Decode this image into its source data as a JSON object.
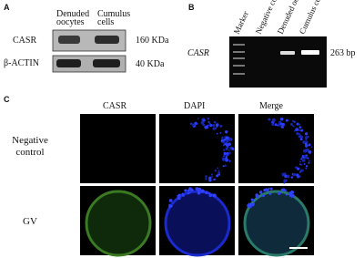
{
  "panels": [
    {
      "label": "A",
      "columns": [
        "Denuded oocytes",
        "Cumulus cells"
      ],
      "rows": [
        {
          "name": "CASR",
          "size": "160 KDa"
        },
        {
          "name": "β-ACTIN",
          "size": "40 KDa"
        }
      ]
    },
    {
      "label": "B",
      "lanes": [
        "Marker",
        "Negative control",
        "Denuded oocytes",
        "Cumulus cells"
      ],
      "gene": "CASR",
      "size": "263 bp"
    },
    {
      "label": "C",
      "columns": [
        "CASR",
        "DAPI",
        "Merge"
      ],
      "rows": [
        "Negative control",
        "GV"
      ]
    }
  ]
}
